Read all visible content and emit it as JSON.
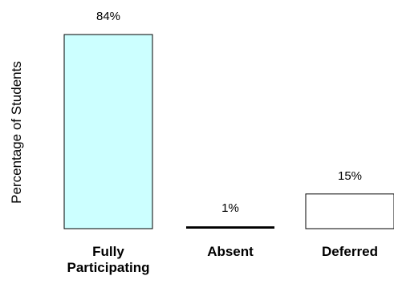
{
  "chart_data": {
    "type": "bar",
    "ylabel": "Percentage of Students",
    "categories": [
      [
        "Fully",
        "Participating"
      ],
      [
        "Absent"
      ],
      [
        "Deferred"
      ]
    ],
    "values": [
      84,
      1,
      15
    ],
    "data_labels": [
      "84%",
      "1%",
      "15%"
    ],
    "colors": [
      "#ccffff",
      "#ffffff",
      "#ffffff"
    ],
    "ylim": [
      0,
      100
    ],
    "grid": false
  }
}
